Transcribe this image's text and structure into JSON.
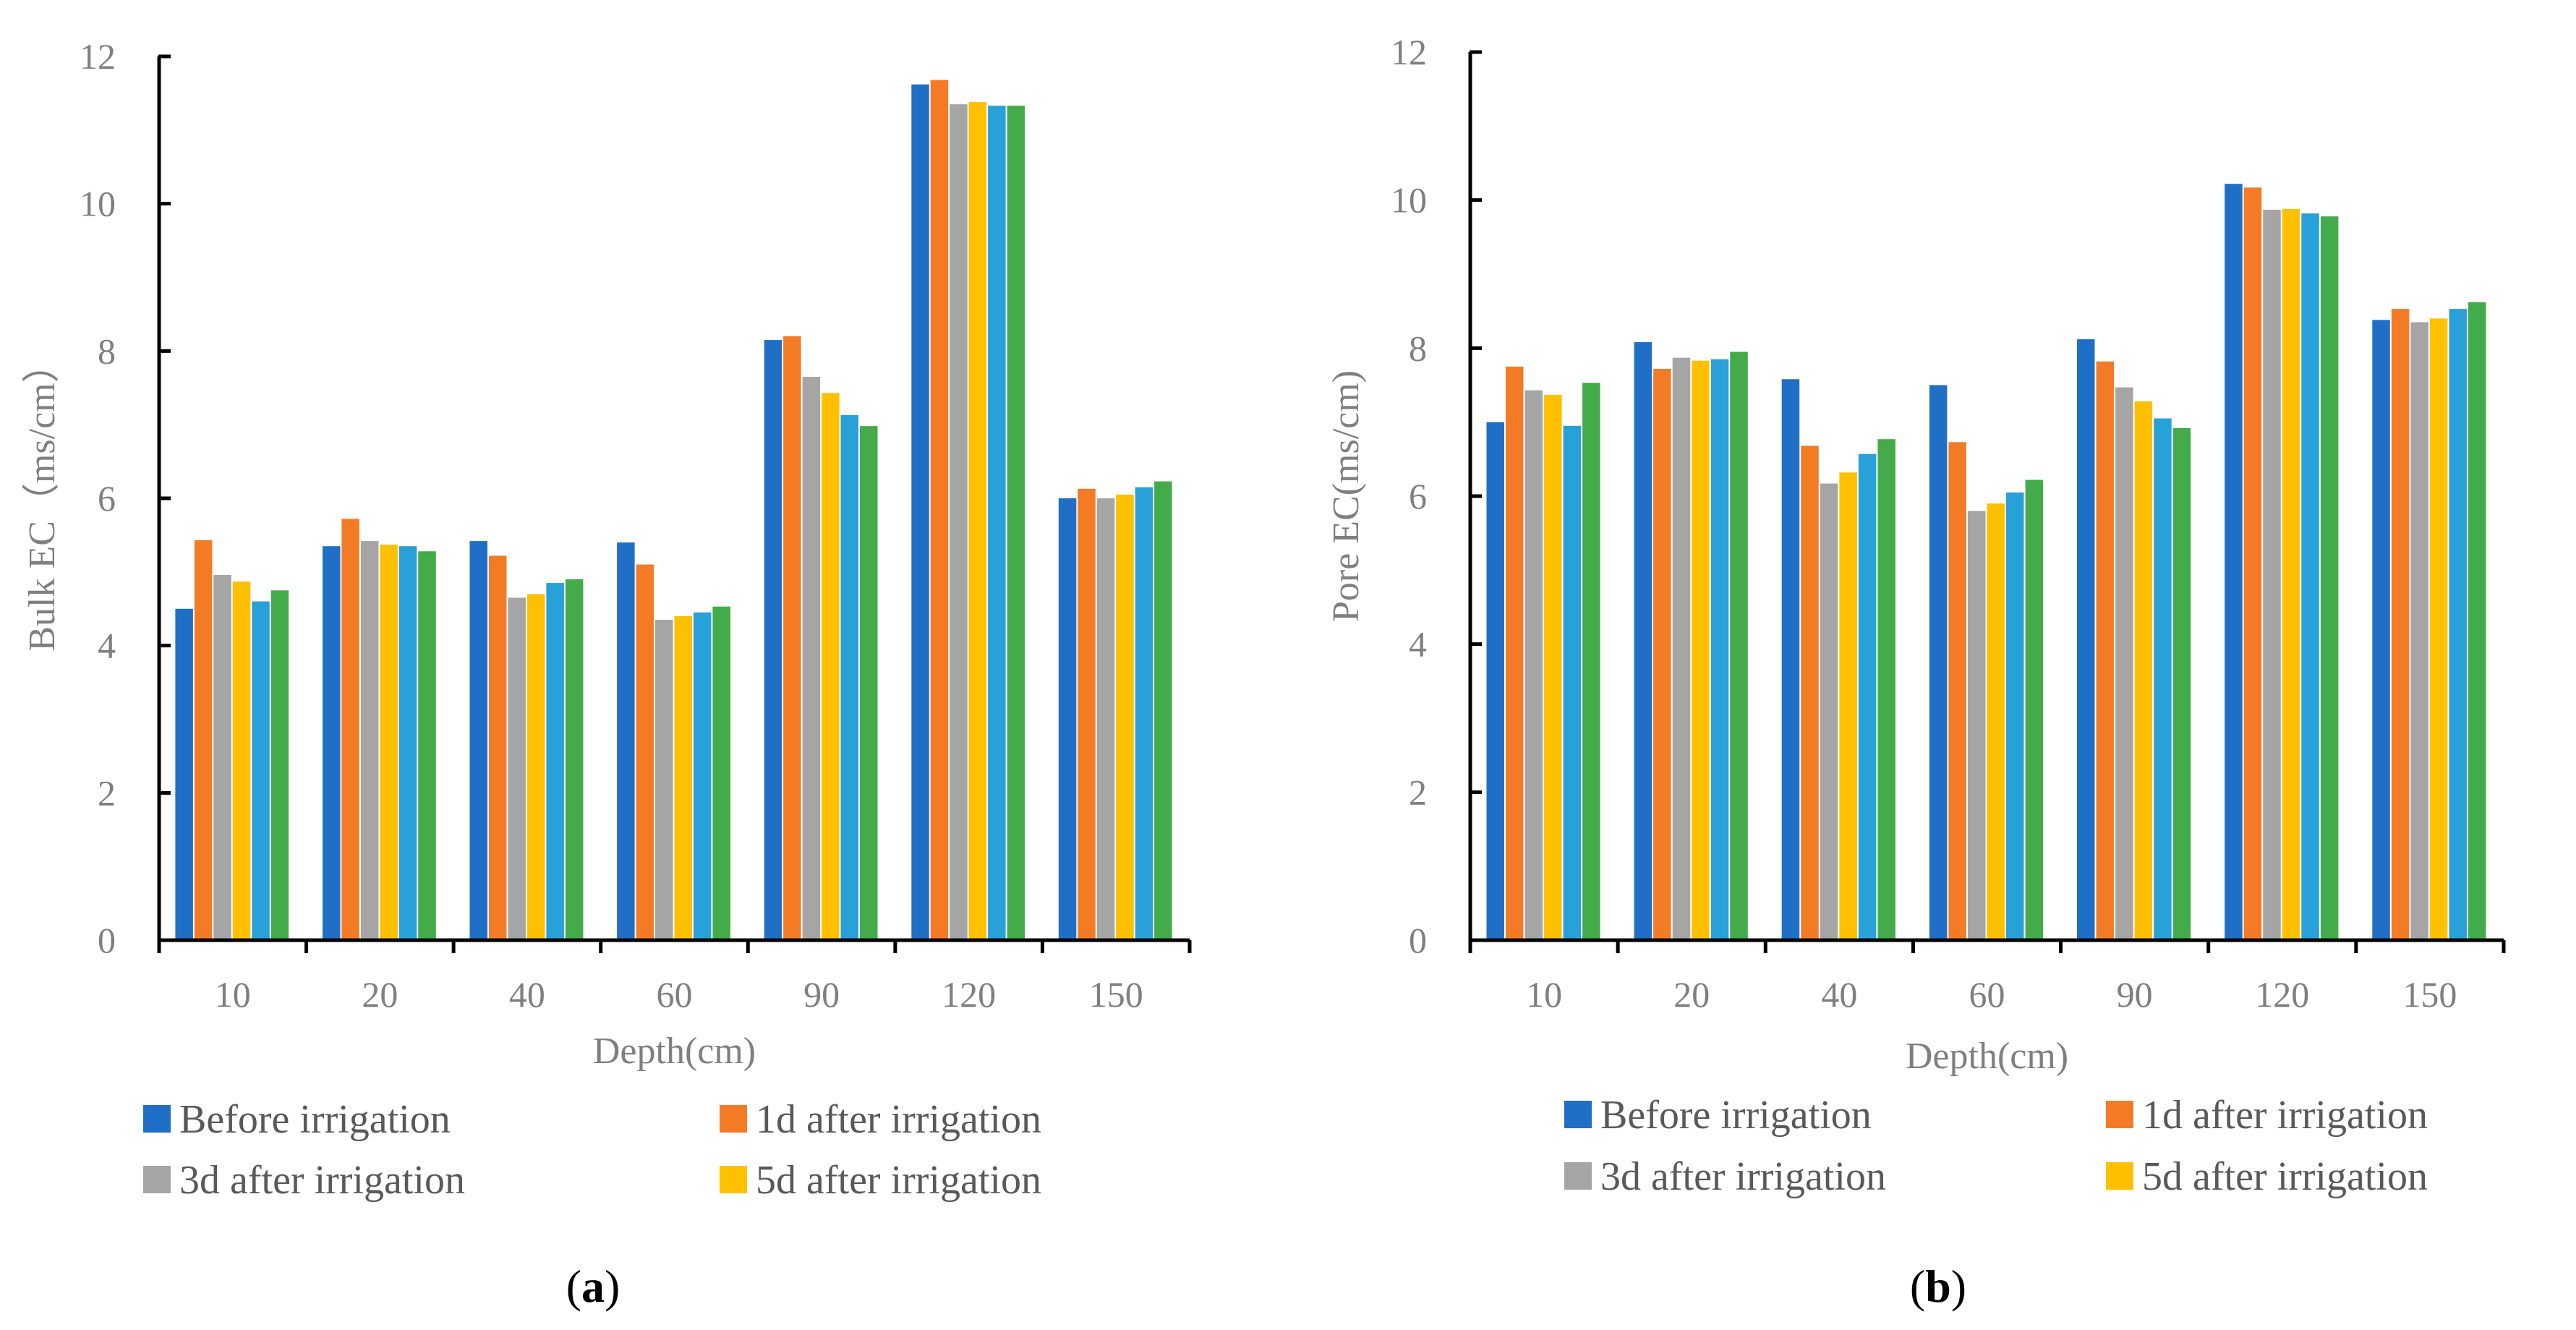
{
  "chart_data": [
    {
      "type": "bar",
      "panel_label": "a",
      "xlabel": "Depth(cm)",
      "ylabel": "Bulk EC（ms/cm）",
      "ylim": [
        0,
        12
      ],
      "yticks": [
        0,
        2,
        4,
        6,
        8,
        10,
        12
      ],
      "categories": [
        "10",
        "20",
        "40",
        "60",
        "90",
        "120",
        "150"
      ],
      "series": [
        {
          "name": "Before irrigation",
          "color": "#1f6fc6",
          "values": [
            4.5,
            5.35,
            5.42,
            5.4,
            8.15,
            11.62,
            6.0
          ]
        },
        {
          "name": "1d after irrigation",
          "color": "#f47b25",
          "values": [
            5.43,
            5.72,
            5.22,
            5.1,
            8.2,
            11.68,
            6.13
          ]
        },
        {
          "name": "3d after irrigation",
          "color": "#a5a5a5",
          "values": [
            4.96,
            5.42,
            4.65,
            4.35,
            7.65,
            11.35,
            6.0
          ]
        },
        {
          "name": "5d after irrigation",
          "color": "#ffc000",
          "values": [
            4.87,
            5.37,
            4.7,
            4.4,
            7.43,
            11.38,
            6.05
          ]
        },
        {
          "color": "#27a1d8",
          "values": [
            4.6,
            5.35,
            4.85,
            4.45,
            7.13,
            11.33,
            6.15
          ]
        },
        {
          "color": "#43ab49",
          "values": [
            4.75,
            5.28,
            4.9,
            4.53,
            6.98,
            11.33,
            6.23
          ]
        }
      ],
      "legend": "bottom"
    },
    {
      "type": "bar",
      "panel_label": "b",
      "xlabel": "Depth(cm)",
      "ylabel": "Pore EC(ms/cm)",
      "ylim": [
        0,
        12
      ],
      "yticks": [
        0,
        2,
        4,
        6,
        8,
        10,
        12
      ],
      "categories": [
        "10",
        "20",
        "40",
        "60",
        "90",
        "120",
        "150"
      ],
      "series": [
        {
          "name": "Before irrigation",
          "color": "#1f6fc6",
          "values": [
            7.0,
            8.08,
            7.58,
            7.5,
            8.12,
            10.22,
            8.38
          ]
        },
        {
          "name": "1d after irrigation",
          "color": "#f47b25",
          "values": [
            7.75,
            7.72,
            6.68,
            6.73,
            7.82,
            10.17,
            8.53
          ]
        },
        {
          "name": "3d after irrigation",
          "color": "#a5a5a5",
          "values": [
            7.43,
            7.87,
            6.17,
            5.8,
            7.47,
            9.87,
            8.35
          ]
        },
        {
          "name": "5d after irrigation",
          "color": "#ffc000",
          "values": [
            7.37,
            7.83,
            6.32,
            5.9,
            7.28,
            9.88,
            8.4
          ]
        },
        {
          "color": "#27a1d8",
          "values": [
            6.95,
            7.85,
            6.57,
            6.05,
            7.05,
            9.82,
            8.53
          ]
        },
        {
          "color": "#43ab49",
          "values": [
            7.53,
            7.95,
            6.77,
            6.22,
            6.92,
            9.78,
            8.62
          ]
        }
      ],
      "legend": "bottom"
    }
  ]
}
